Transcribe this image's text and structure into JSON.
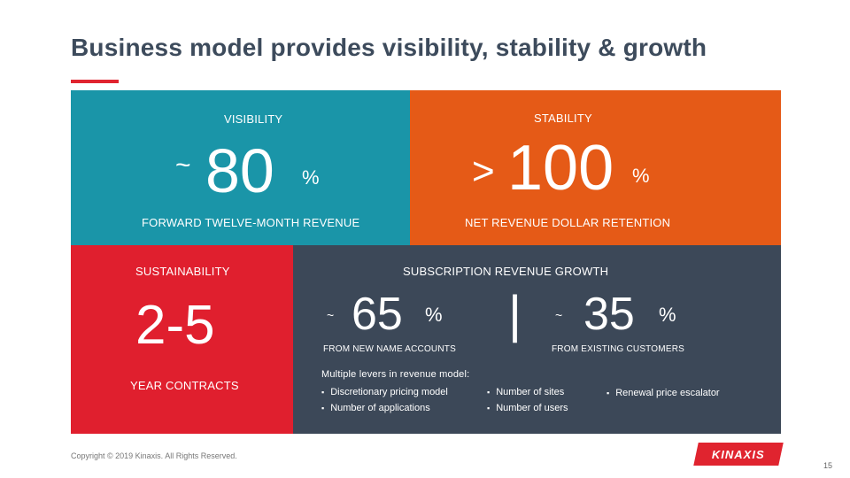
{
  "title": "Business model provides visibility, stability & growth",
  "visibility": {
    "label": "VISIBILITY",
    "prefix": "~",
    "value": "80",
    "unit": "%",
    "caption": "FORWARD TWELVE-MONTH REVENUE"
  },
  "stability": {
    "label": "STABILITY",
    "prefix": ">",
    "value": "100",
    "unit": "%",
    "caption": "NET REVENUE DOLLAR RETENTION"
  },
  "sustainability": {
    "label": "SUSTAINABILITY",
    "value": "2-5",
    "caption": "YEAR CONTRACTS"
  },
  "subscription": {
    "label": "SUBSCRIPTION REVENUE GROWTH",
    "new": {
      "prefix": "~",
      "value": "65",
      "unit": "%",
      "caption": "FROM NEW NAME ACCOUNTS"
    },
    "separator": "|",
    "existing": {
      "prefix": "~",
      "value": "35",
      "unit": "%",
      "caption": "FROM EXISTING CUSTOMERS"
    },
    "levers_heading": "Multiple levers in revenue model:",
    "levers": [
      "Discretionary pricing model",
      "Number of applications",
      "Number of sites",
      "Number of users",
      "Renewal price escalator"
    ]
  },
  "footer": {
    "copyright": "Copyright © 2019 Kinaxis. All Rights Reserved.",
    "logo": "KINAXIS",
    "page": "15"
  },
  "colors": {
    "visibility": "#1a95a8",
    "stability": "#e55a17",
    "sustainability": "#e01f2e",
    "subscription": "#3c4858",
    "accent": "#e0242f"
  }
}
